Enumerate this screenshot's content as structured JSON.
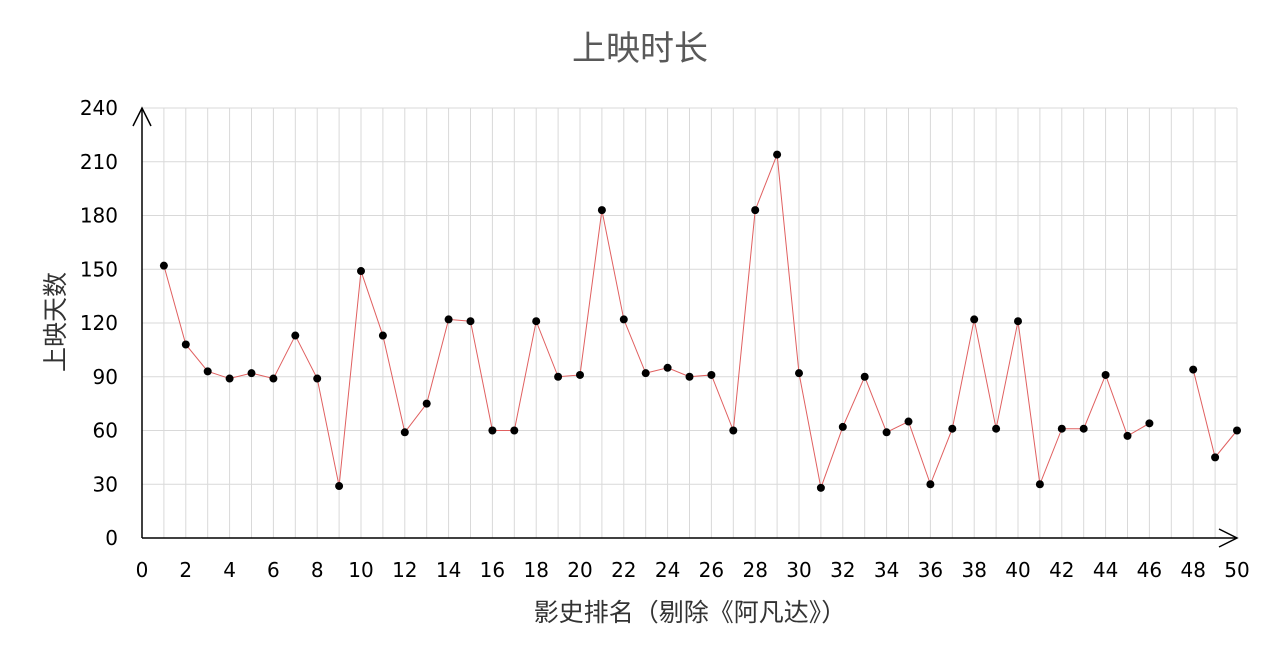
{
  "chart_data": {
    "type": "line",
    "title": "上映时长",
    "xlabel": "影史排名（剔除《阿凡达》）",
    "ylabel": "上映天数",
    "xlim": [
      0,
      50
    ],
    "ylim": [
      0,
      240
    ],
    "x_ticks": [
      0,
      2,
      4,
      6,
      8,
      10,
      12,
      14,
      16,
      18,
      20,
      22,
      24,
      26,
      28,
      30,
      32,
      34,
      36,
      38,
      40,
      42,
      44,
      46,
      48,
      50
    ],
    "y_ticks": [
      0,
      30,
      60,
      90,
      120,
      150,
      180,
      210,
      240
    ],
    "grid": true,
    "legend": "none",
    "line_color": "#e06060",
    "marker_color": "#000000",
    "series": [
      {
        "points": [
          [
            1,
            152
          ],
          [
            2,
            108
          ],
          [
            3,
            93
          ],
          [
            4,
            89
          ],
          [
            5,
            92
          ],
          [
            6,
            89
          ],
          [
            7,
            113
          ],
          [
            8,
            89
          ],
          [
            9,
            29
          ],
          [
            10,
            149
          ],
          [
            11,
            113
          ],
          [
            12,
            59
          ],
          [
            13,
            75
          ],
          [
            14,
            122
          ],
          [
            15,
            121
          ],
          [
            16,
            60
          ],
          [
            17,
            60
          ],
          [
            18,
            121
          ],
          [
            19,
            90
          ],
          [
            20,
            91
          ],
          [
            21,
            183
          ],
          [
            22,
            122
          ],
          [
            23,
            92
          ],
          [
            24,
            95
          ],
          [
            25,
            90
          ],
          [
            26,
            91
          ],
          [
            27,
            60
          ],
          [
            28,
            183
          ],
          [
            29,
            214
          ],
          [
            30,
            92
          ],
          [
            31,
            28
          ],
          [
            32,
            62
          ],
          [
            33,
            90
          ],
          [
            34,
            59
          ],
          [
            35,
            65
          ],
          [
            36,
            30
          ],
          [
            37,
            61
          ],
          [
            38,
            122
          ],
          [
            39,
            61
          ],
          [
            40,
            121
          ],
          [
            41,
            30
          ],
          [
            42,
            61
          ],
          [
            43,
            61
          ],
          [
            44,
            91
          ],
          [
            45,
            57
          ],
          [
            46,
            64
          ],
          [
            48,
            94
          ],
          [
            49,
            45
          ],
          [
            50,
            60
          ]
        ]
      }
    ]
  }
}
